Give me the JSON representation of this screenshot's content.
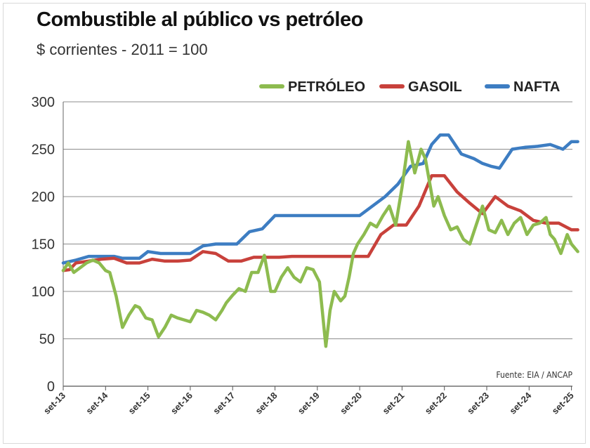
{
  "chart_data": {
    "type": "line",
    "title": "Combustible al público vs petróleo",
    "subtitle": "$ corrientes - 2011 = 100",
    "ylim": [
      0,
      300
    ],
    "yticks": [
      0,
      50,
      100,
      150,
      200,
      250,
      300
    ],
    "xlim": [
      0,
      12.2
    ],
    "xticks": [
      "set-13",
      "set-14",
      "set-15",
      "set-16",
      "set-17",
      "set-18",
      "set-19",
      "set-20",
      "set-21",
      "set-22",
      "set-23",
      "set-24",
      "set-25"
    ],
    "grid": true,
    "legend_position": "top-right",
    "source": "Fuente: EIA / ANCAP",
    "series": [
      {
        "name": "PETRÓLEO",
        "color": "#8dbb4f",
        "x": [
          0,
          0.12,
          0.25,
          0.4,
          0.55,
          0.7,
          0.85,
          1.0,
          1.1,
          1.25,
          1.4,
          1.55,
          1.7,
          1.8,
          1.95,
          2.1,
          2.25,
          2.4,
          2.55,
          2.7,
          2.85,
          3.0,
          3.15,
          3.3,
          3.45,
          3.6,
          3.75,
          3.85,
          4.0,
          4.15,
          4.3,
          4.45,
          4.6,
          4.75,
          4.9,
          5.0,
          5.15,
          5.3,
          5.45,
          5.6,
          5.75,
          5.9,
          6.05,
          6.2,
          6.3,
          6.4,
          6.55,
          6.65,
          6.75,
          6.85,
          6.95,
          7.1,
          7.25,
          7.4,
          7.55,
          7.7,
          7.85,
          8.0,
          8.15,
          8.3,
          8.45,
          8.55,
          8.65,
          8.75,
          8.85,
          9.0,
          9.15,
          9.3,
          9.45,
          9.6,
          9.75,
          9.9,
          10.05,
          10.2,
          10.35,
          10.5,
          10.65,
          10.8,
          10.95,
          11.1,
          11.25,
          11.4,
          11.5,
          11.6,
          11.75,
          11.9,
          12.0,
          12.15
        ],
        "values": [
          122,
          130,
          120,
          125,
          130,
          133,
          130,
          122,
          120,
          95,
          62,
          75,
          85,
          83,
          72,
          70,
          52,
          62,
          75,
          72,
          70,
          68,
          80,
          78,
          75,
          70,
          80,
          88,
          96,
          103,
          100,
          120,
          120,
          138,
          100,
          100,
          115,
          125,
          115,
          110,
          125,
          123,
          110,
          42,
          80,
          100,
          90,
          95,
          115,
          140,
          150,
          160,
          172,
          168,
          180,
          190,
          170,
          210,
          258,
          225,
          250,
          240,
          215,
          190,
          200,
          180,
          165,
          168,
          155,
          150,
          170,
          190,
          165,
          162,
          175,
          160,
          172,
          178,
          160,
          170,
          172,
          178,
          160,
          155,
          140,
          160,
          150,
          142
        ]
      },
      {
        "name": "GASOIL",
        "color": "#c8413b",
        "x": [
          0,
          0.15,
          0.3,
          0.6,
          0.9,
          1.2,
          1.5,
          1.8,
          2.1,
          2.4,
          2.7,
          3.0,
          3.3,
          3.6,
          3.9,
          4.2,
          4.5,
          4.8,
          5.1,
          5.4,
          5.7,
          6.0,
          6.3,
          6.6,
          6.9,
          7.2,
          7.5,
          7.8,
          8.1,
          8.4,
          8.7,
          9.0,
          9.3,
          9.6,
          9.9,
          10.2,
          10.5,
          10.8,
          11.1,
          11.4,
          11.7,
          12.0,
          12.15
        ],
        "values": [
          122,
          123,
          130,
          132,
          134,
          135,
          130,
          130,
          134,
          132,
          132,
          133,
          142,
          140,
          132,
          132,
          136,
          136,
          136,
          137,
          137,
          137,
          137,
          137,
          137,
          137,
          160,
          170,
          170,
          190,
          222,
          222,
          205,
          193,
          182,
          200,
          190,
          185,
          175,
          172,
          172,
          165,
          165
        ]
      },
      {
        "name": "NAFTA",
        "color": "#3d7dc2",
        "x": [
          0,
          0.3,
          0.6,
          1.0,
          1.2,
          1.4,
          1.6,
          1.8,
          2.0,
          2.3,
          2.7,
          3.0,
          3.3,
          3.6,
          3.9,
          4.1,
          4.4,
          4.7,
          5.0,
          5.4,
          5.8,
          6.2,
          6.6,
          7.0,
          7.3,
          7.6,
          7.9,
          8.2,
          8.5,
          8.7,
          8.9,
          9.1,
          9.4,
          9.7,
          9.9,
          10.1,
          10.3,
          10.6,
          10.9,
          11.2,
          11.5,
          11.8,
          12.0,
          12.15
        ],
        "values": [
          130,
          133,
          137,
          137,
          137,
          135,
          135,
          135,
          142,
          140,
          140,
          140,
          148,
          150,
          150,
          150,
          163,
          166,
          180,
          180,
          180,
          180,
          180,
          180,
          190,
          200,
          213,
          232,
          235,
          255,
          265,
          265,
          245,
          240,
          235,
          232,
          230,
          250,
          252,
          253,
          255,
          250,
          258,
          258
        ]
      }
    ]
  }
}
